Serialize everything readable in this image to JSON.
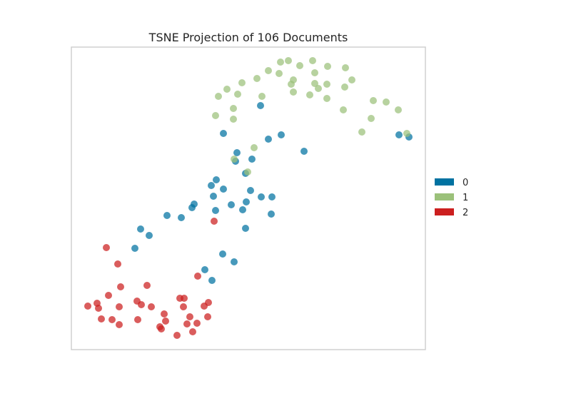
{
  "chart_data": {
    "type": "scatter",
    "title": "TSNE Projection of 106 Documents",
    "xlabel": "",
    "ylabel": "",
    "grid": false,
    "axis_ticks": false,
    "legend_position": "right",
    "series": [
      {
        "name": "0",
        "color": "#0072A1",
        "points": [
          [
            365,
            148
          ],
          [
            313,
            187
          ],
          [
            394,
            189
          ],
          [
            376,
            195
          ],
          [
            332,
            214
          ],
          [
            426,
            212
          ],
          [
            353,
            223
          ],
          [
            330,
            226
          ],
          [
            344,
            243
          ],
          [
            303,
            252
          ],
          [
            296,
            260
          ],
          [
            313,
            265
          ],
          [
            351,
            267
          ],
          [
            299,
            275
          ],
          [
            366,
            276
          ],
          [
            381,
            276
          ],
          [
            345,
            283
          ],
          [
            324,
            287
          ],
          [
            272,
            286
          ],
          [
            269,
            291
          ],
          [
            302,
            295
          ],
          [
            340,
            294
          ],
          [
            380,
            300
          ],
          [
            234,
            302
          ],
          [
            254,
            305
          ],
          [
            344,
            320
          ],
          [
            197,
            321
          ],
          [
            209,
            330
          ],
          [
            189,
            348
          ],
          [
            312,
            356
          ],
          [
            328,
            367
          ],
          [
            287,
            378
          ],
          [
            297,
            393
          ],
          [
            559,
            189
          ],
          [
            573,
            192
          ]
        ]
      },
      {
        "name": "1",
        "color": "#9BC17A",
        "points": [
          [
            393,
            87
          ],
          [
            404,
            85
          ],
          [
            438,
            85
          ],
          [
            420,
            92
          ],
          [
            459,
            93
          ],
          [
            484,
            95
          ],
          [
            376,
            99
          ],
          [
            391,
            103
          ],
          [
            441,
            102
          ],
          [
            360,
            110
          ],
          [
            411,
            112
          ],
          [
            493,
            112
          ],
          [
            339,
            116
          ],
          [
            408,
            118
          ],
          [
            441,
            117
          ],
          [
            458,
            118
          ],
          [
            483,
            122
          ],
          [
            318,
            125
          ],
          [
            446,
            124
          ],
          [
            306,
            135
          ],
          [
            333,
            132
          ],
          [
            367,
            135
          ],
          [
            411,
            129
          ],
          [
            434,
            133
          ],
          [
            458,
            138
          ],
          [
            523,
            141
          ],
          [
            541,
            143
          ],
          [
            327,
            152
          ],
          [
            481,
            154
          ],
          [
            558,
            154
          ],
          [
            302,
            162
          ],
          [
            327,
            167
          ],
          [
            520,
            166
          ],
          [
            507,
            185
          ],
          [
            570,
            187
          ],
          [
            356,
            207
          ],
          [
            328,
            223
          ],
          [
            347,
            241
          ]
        ]
      },
      {
        "name": "2",
        "color": "#CC1F1F",
        "points": [
          [
            300,
            310
          ],
          [
            149,
            347
          ],
          [
            165,
            370
          ],
          [
            277,
            387
          ],
          [
            169,
            402
          ],
          [
            206,
            400
          ],
          [
            152,
            414
          ],
          [
            252,
            418
          ],
          [
            258,
            418
          ],
          [
            136,
            425
          ],
          [
            192,
            422
          ],
          [
            292,
            424
          ],
          [
            123,
            429
          ],
          [
            138,
            432
          ],
          [
            167,
            430
          ],
          [
            198,
            427
          ],
          [
            212,
            430
          ],
          [
            257,
            430
          ],
          [
            286,
            429
          ],
          [
            230,
            440
          ],
          [
            266,
            444
          ],
          [
            291,
            444
          ],
          [
            142,
            447
          ],
          [
            157,
            448
          ],
          [
            193,
            448
          ],
          [
            232,
            450
          ],
          [
            167,
            455
          ],
          [
            262,
            454
          ],
          [
            276,
            453
          ],
          [
            224,
            458
          ],
          [
            226,
            461
          ],
          [
            270,
            465
          ],
          [
            248,
            470
          ]
        ]
      }
    ]
  }
}
